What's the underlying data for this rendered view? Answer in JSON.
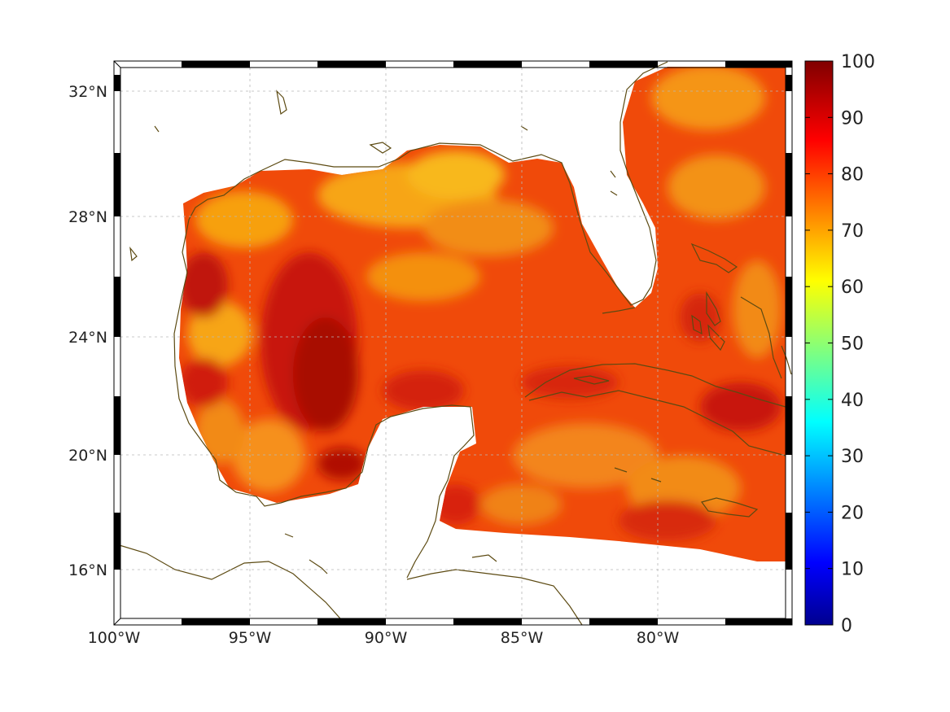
{
  "map": {
    "projection": "mercator",
    "lon_range": [
      -100,
      -75
    ],
    "lat_range": [
      14.3,
      33.0
    ],
    "lon_ticks": [
      -100,
      -95,
      -90,
      -85,
      -80
    ],
    "lon_tick_labels": [
      "100°W",
      "95°W",
      "90°W",
      "85°W",
      "80°W"
    ],
    "lat_ticks": [
      16,
      20,
      24,
      28,
      32
    ],
    "lat_tick_labels": [
      "16°N",
      "20°N",
      "24°N",
      "28°N",
      "32°N"
    ],
    "grid": true,
    "frame": "alternating black/white border",
    "coastline_color": "#5c4a12",
    "data_region": "Gulf of Mexico, Caribbean and western Atlantic"
  },
  "colorbar": {
    "colormap": "jet",
    "min": 0,
    "max": 100,
    "tick_values": [
      0,
      10,
      20,
      30,
      40,
      50,
      60,
      70,
      80,
      90,
      100
    ],
    "tick_labels": [
      "0",
      "10",
      "20",
      "30",
      "40",
      "50",
      "60",
      "70",
      "80",
      "90",
      "100"
    ]
  },
  "chart_data": {
    "type": "heatmap",
    "title": "",
    "xlabel": "",
    "ylabel": "",
    "x_range": [
      -100,
      -75
    ],
    "y_range": [
      14.3,
      33.0
    ],
    "value_range": [
      0,
      100
    ],
    "typical_value_range_shown": [
      68,
      95
    ],
    "xtick_labels": [
      "100°W",
      "95°W",
      "90°W",
      "85°W",
      "80°W"
    ],
    "ytick_labels": [
      "16°N",
      "20°N",
      "24°N",
      "28°N",
      "32°N"
    ],
    "colorbar_labels": [
      "0",
      "10",
      "20",
      "30",
      "40",
      "50",
      "60",
      "70",
      "80",
      "90",
      "100"
    ]
  }
}
